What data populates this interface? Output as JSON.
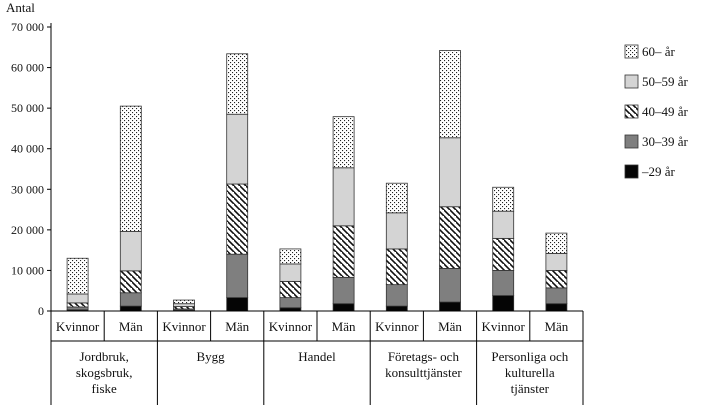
{
  "chart_data": {
    "type": "bar",
    "stacked": true,
    "ylabel": "Antal",
    "ylim": [
      0,
      70000
    ],
    "yticks": [
      0,
      10000,
      20000,
      30000,
      40000,
      50000,
      60000,
      70000
    ],
    "ytick_labels": [
      "0",
      "10 000",
      "20 000",
      "30 000",
      "40 000",
      "50 000",
      "60 000",
      "70 000"
    ],
    "groups": [
      {
        "label_lines": [
          "Jordbruk,",
          "skogsbruk,",
          "fiske"
        ],
        "bars": [
          "Kvinnor",
          "Män"
        ]
      },
      {
        "label_lines": [
          "Bygg"
        ],
        "bars": [
          "Kvinnor",
          "Män"
        ]
      },
      {
        "label_lines": [
          "Handel"
        ],
        "bars": [
          "Kvinnor",
          "Män"
        ]
      },
      {
        "label_lines": [
          "Företags- och",
          "konsulttjänster"
        ],
        "bars": [
          "Kvinnor",
          "Män"
        ]
      },
      {
        "label_lines": [
          "Personliga och",
          "kulturella",
          "tjänster"
        ],
        "bars": [
          "Kvinnor",
          "Män"
        ]
      }
    ],
    "series": [
      {
        "name": "–29 år",
        "pattern": "solid-black",
        "values": [
          300,
          1200,
          200,
          3300,
          800,
          1800,
          1200,
          2200,
          3800,
          1800
        ]
      },
      {
        "name": "30–39 år",
        "pattern": "solid-gray",
        "values": [
          700,
          3300,
          300,
          10700,
          2500,
          6500,
          5300,
          8300,
          6200,
          3900
        ]
      },
      {
        "name": "40–49 år",
        "pattern": "diagonal-hatch",
        "values": [
          1000,
          5400,
          600,
          17300,
          4000,
          12700,
          8800,
          15200,
          7900,
          4300
        ]
      },
      {
        "name": "50–59 år",
        "pattern": "light-gray",
        "values": [
          2200,
          9700,
          700,
          17200,
          4300,
          14300,
          8900,
          17000,
          6700,
          4200
        ]
      },
      {
        "name": "60– år",
        "pattern": "dotted",
        "values": [
          8800,
          30900,
          900,
          14900,
          3700,
          12600,
          7300,
          21500,
          5900,
          5000
        ]
      }
    ],
    "legend_order": [
      "60– år",
      "50–59 år",
      "40–49 år",
      "30–39 år",
      "–29 år"
    ],
    "legend_position": "right",
    "grid": false
  }
}
